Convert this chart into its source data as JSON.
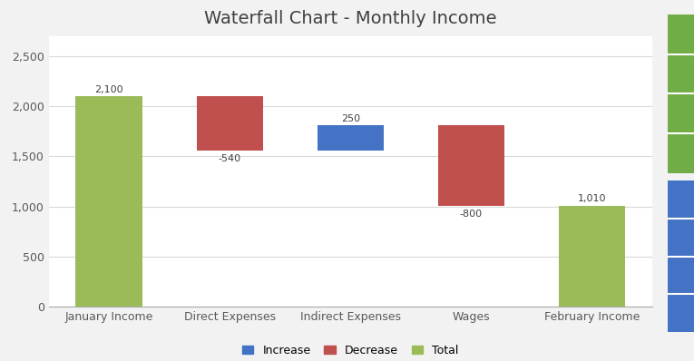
{
  "title": "Waterfall Chart - Monthly Income",
  "categories": [
    "January Income",
    "Direct Expenses",
    "Indirect Expenses",
    "Wages",
    "February Income"
  ],
  "values": [
    2100,
    -540,
    250,
    -800,
    1010
  ],
  "types": [
    "total",
    "decrease",
    "increase",
    "decrease",
    "total"
  ],
  "labels": [
    "2,100",
    "-540",
    "250",
    "-800",
    "1,010"
  ],
  "color_increase": "#4472C4",
  "color_decrease": "#C0504D",
  "color_total": "#9BBB59",
  "background_color": "#F2F2F2",
  "plot_bg_color": "#FFFFFF",
  "grid_color": "#D9D9D9",
  "ylim": [
    0,
    2700
  ],
  "yticks": [
    0,
    500,
    1000,
    1500,
    2000,
    2500
  ],
  "title_fontsize": 14,
  "tick_fontsize": 9,
  "label_fontsize": 8,
  "legend_fontsize": 9,
  "bar_width": 0.55,
  "tab_green": "#70AD47",
  "tab_blue": "#4472C4",
  "tab_green2": "#70AD47"
}
